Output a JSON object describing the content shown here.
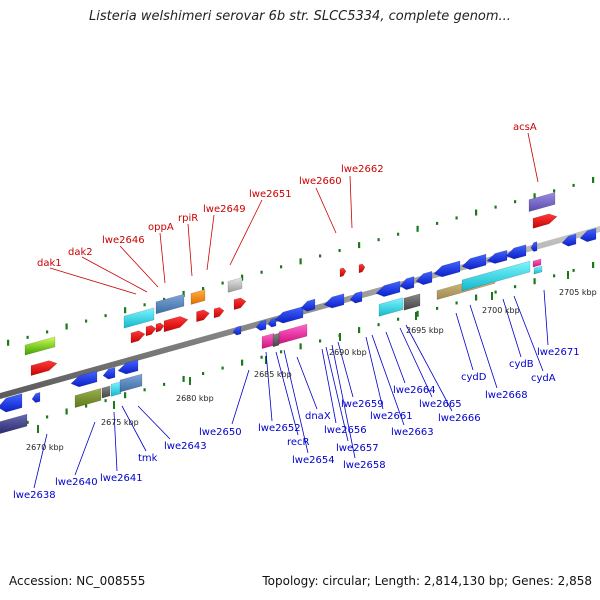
{
  "title": "Listeria welshimeri serovar 6b str. SLCC5334, complete genom...",
  "footer": {
    "accession": "Accession: NC_008555",
    "summary": "Topology: circular; Length: 2,814,130 bp; Genes: 2,858"
  },
  "colors": {
    "upper_label": "#cc0000",
    "lower_label": "#0000cc",
    "backbone": "#8a8a8a"
  },
  "scale": [
    {
      "text": "2670 kbp"
    },
    {
      "text": "2675 kbp"
    },
    {
      "text": "2680 kbp"
    },
    {
      "text": "2685 kbp"
    },
    {
      "text": "2690 kbp"
    },
    {
      "text": "2695 kbp"
    },
    {
      "text": "2700 kbp"
    },
    {
      "text": "2705 kbp"
    }
  ],
  "upper_labels": [
    "dak1",
    "dak2",
    "lwe2646",
    "oppA",
    "rpiR",
    "lwe2649",
    "lwe2651",
    "lwe2660",
    "lwe2662",
    "acsA"
  ],
  "lower_labels": [
    "lwe2638",
    "lwe2640",
    "lwe2641",
    "tmk",
    "lwe2643",
    "lwe2650",
    "lwe2652",
    "recR",
    "lwe2654",
    "dnaX",
    "lwe2656",
    "lwe2657",
    "lwe2658",
    "lwe2659",
    "lwe2661",
    "lwe2663",
    "lwe2664",
    "lwe2665",
    "lwe2666",
    "cydD",
    "lwe2668",
    "cydB",
    "cydA",
    "lwe2671"
  ]
}
